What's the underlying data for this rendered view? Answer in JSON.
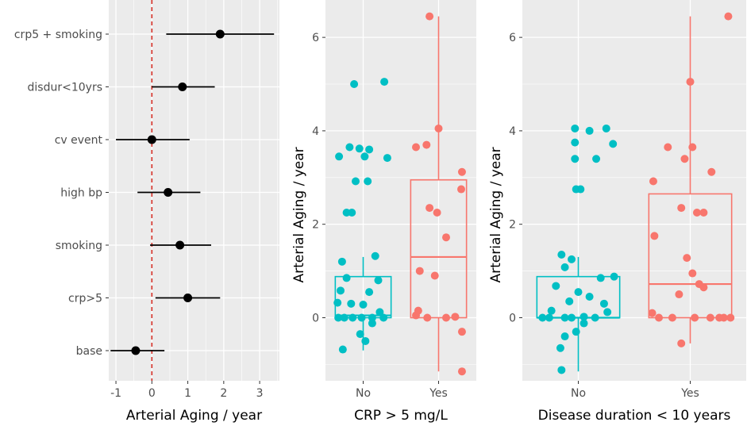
{
  "colors": {
    "panel_bg": "#EBEBEB",
    "grid": "#FFFFFF",
    "no": "#00BFC4",
    "yes": "#F8766D",
    "refline": "#D73027",
    "text": "#4D4D4D",
    "title": "#000000"
  },
  "chart_data": [
    {
      "type": "forest",
      "xlabel": "Arterial Aging / year",
      "xlim": [
        -1.2,
        3.55
      ],
      "xticks": [
        -1,
        0,
        1,
        2,
        3
      ],
      "xtick_labels": [
        "-1",
        "0",
        "1",
        "2",
        "3"
      ],
      "reference_line": 0,
      "rows": [
        {
          "label": "crp5 + smoking",
          "estimate": 1.9,
          "lower": 0.4,
          "upper": 3.4
        },
        {
          "label": "disdur<10yrs",
          "estimate": 0.85,
          "lower": 0.0,
          "upper": 1.75
        },
        {
          "label": "cv event",
          "estimate": 0.0,
          "lower": -1.0,
          "upper": 1.05
        },
        {
          "label": "high bp",
          "estimate": 0.45,
          "lower": -0.4,
          "upper": 1.35
        },
        {
          "label": "smoking",
          "estimate": 0.78,
          "lower": -0.05,
          "upper": 1.65
        },
        {
          "label": "crp>5",
          "estimate": 1.0,
          "lower": 0.1,
          "upper": 1.9
        },
        {
          "label": "base",
          "estimate": -0.45,
          "lower": -1.15,
          "upper": 0.35
        }
      ]
    },
    {
      "type": "box",
      "xlabel": "CRP > 5 mg/L",
      "ylabel": "Arterial Aging / year",
      "ylim": [
        -1.35,
        6.8
      ],
      "yticks": [
        0,
        2,
        4,
        6
      ],
      "ytick_labels": [
        "0",
        "2",
        "4",
        "6"
      ],
      "categories": [
        "No",
        "Yes"
      ],
      "boxes": [
        {
          "name": "No",
          "min": -0.7,
          "q1": 0.0,
          "median": 0.05,
          "q3": 0.88,
          "max": 1.3
        },
        {
          "name": "Yes",
          "min": -1.15,
          "q1": 0.0,
          "median": 1.3,
          "q3": 2.95,
          "max": 6.45
        }
      ],
      "points": [
        {
          "group": "No",
          "jitter": -0.12,
          "y": 5.0
        },
        {
          "group": "No",
          "jitter": 0.28,
          "y": 5.05
        },
        {
          "group": "No",
          "jitter": -0.18,
          "y": 3.65
        },
        {
          "group": "No",
          "jitter": -0.05,
          "y": 3.62
        },
        {
          "group": "No",
          "jitter": -0.32,
          "y": 3.45
        },
        {
          "group": "No",
          "jitter": 0.08,
          "y": 3.6
        },
        {
          "group": "No",
          "jitter": 0.32,
          "y": 3.42
        },
        {
          "group": "No",
          "jitter": 0.02,
          "y": 3.45
        },
        {
          "group": "No",
          "jitter": -0.1,
          "y": 2.92
        },
        {
          "group": "No",
          "jitter": 0.06,
          "y": 2.92
        },
        {
          "group": "No",
          "jitter": -0.22,
          "y": 2.25
        },
        {
          "group": "No",
          "jitter": -0.15,
          "y": 2.25
        },
        {
          "group": "No",
          "jitter": 0.16,
          "y": 1.32
        },
        {
          "group": "No",
          "jitter": -0.28,
          "y": 1.2
        },
        {
          "group": "No",
          "jitter": -0.22,
          "y": 0.85
        },
        {
          "group": "No",
          "jitter": 0.2,
          "y": 0.8
        },
        {
          "group": "No",
          "jitter": -0.3,
          "y": 0.58
        },
        {
          "group": "No",
          "jitter": 0.08,
          "y": 0.55
        },
        {
          "group": "No",
          "jitter": -0.34,
          "y": 0.32
        },
        {
          "group": "No",
          "jitter": -0.16,
          "y": 0.3
        },
        {
          "group": "No",
          "jitter": 0.0,
          "y": 0.28
        },
        {
          "group": "No",
          "jitter": 0.22,
          "y": 0.12
        },
        {
          "group": "No",
          "jitter": -0.33,
          "y": 0.0
        },
        {
          "group": "No",
          "jitter": -0.25,
          "y": 0.0
        },
        {
          "group": "No",
          "jitter": -0.14,
          "y": 0.0
        },
        {
          "group": "No",
          "jitter": -0.02,
          "y": 0.0
        },
        {
          "group": "No",
          "jitter": 0.12,
          "y": 0.0
        },
        {
          "group": "No",
          "jitter": 0.27,
          "y": 0.0
        },
        {
          "group": "No",
          "jitter": 0.12,
          "y": -0.12
        },
        {
          "group": "No",
          "jitter": -0.04,
          "y": -0.35
        },
        {
          "group": "No",
          "jitter": 0.03,
          "y": -0.5
        },
        {
          "group": "No",
          "jitter": -0.27,
          "y": -0.68
        },
        {
          "group": "Yes",
          "jitter": -0.12,
          "y": 6.45
        },
        {
          "group": "Yes",
          "jitter": 0.0,
          "y": 4.05
        },
        {
          "group": "Yes",
          "jitter": -0.16,
          "y": 3.7
        },
        {
          "group": "Yes",
          "jitter": -0.3,
          "y": 3.65
        },
        {
          "group": "Yes",
          "jitter": 0.31,
          "y": 3.12
        },
        {
          "group": "Yes",
          "jitter": 0.3,
          "y": 2.75
        },
        {
          "group": "Yes",
          "jitter": -0.12,
          "y": 2.35
        },
        {
          "group": "Yes",
          "jitter": -0.02,
          "y": 2.25
        },
        {
          "group": "Yes",
          "jitter": 0.1,
          "y": 1.72
        },
        {
          "group": "Yes",
          "jitter": -0.25,
          "y": 1.0
        },
        {
          "group": "Yes",
          "jitter": -0.05,
          "y": 0.9
        },
        {
          "group": "Yes",
          "jitter": -0.27,
          "y": 0.15
        },
        {
          "group": "Yes",
          "jitter": -0.3,
          "y": 0.05
        },
        {
          "group": "Yes",
          "jitter": -0.15,
          "y": 0.0
        },
        {
          "group": "Yes",
          "jitter": 0.1,
          "y": 0.0
        },
        {
          "group": "Yes",
          "jitter": 0.22,
          "y": 0.02
        },
        {
          "group": "Yes",
          "jitter": 0.31,
          "y": -0.3
        },
        {
          "group": "Yes",
          "jitter": 0.31,
          "y": -1.15
        }
      ]
    },
    {
      "type": "box",
      "xlabel": "Disease duration < 10 years",
      "ylabel": "Arterial Aging / year",
      "ylim": [
        -1.35,
        6.8
      ],
      "yticks": [
        0,
        2,
        4,
        6
      ],
      "ytick_labels": [
        "0",
        "2",
        "4",
        "6"
      ],
      "categories": [
        "No",
        "Yes"
      ],
      "boxes": [
        {
          "name": "No",
          "min": -1.15,
          "q1": 0.0,
          "median": 0.0,
          "q3": 0.88,
          "max": 1.3
        },
        {
          "name": "Yes",
          "min": -0.55,
          "q1": 0.0,
          "median": 0.72,
          "q3": 2.65,
          "max": 6.45
        }
      ],
      "points": [
        {
          "group": "No",
          "jitter": -0.03,
          "y": 4.05
        },
        {
          "group": "No",
          "jitter": 0.1,
          "y": 4.0
        },
        {
          "group": "No",
          "jitter": 0.25,
          "y": 4.05
        },
        {
          "group": "No",
          "jitter": -0.03,
          "y": 3.75
        },
        {
          "group": "No",
          "jitter": 0.31,
          "y": 3.72
        },
        {
          "group": "No",
          "jitter": 0.16,
          "y": 3.4
        },
        {
          "group": "No",
          "jitter": -0.03,
          "y": 3.4
        },
        {
          "group": "No",
          "jitter": -0.02,
          "y": 2.75
        },
        {
          "group": "No",
          "jitter": 0.02,
          "y": 2.75
        },
        {
          "group": "No",
          "jitter": -0.15,
          "y": 1.35
        },
        {
          "group": "No",
          "jitter": -0.06,
          "y": 1.25
        },
        {
          "group": "No",
          "jitter": -0.12,
          "y": 1.08
        },
        {
          "group": "No",
          "jitter": 0.32,
          "y": 0.88
        },
        {
          "group": "No",
          "jitter": 0.2,
          "y": 0.85
        },
        {
          "group": "No",
          "jitter": -0.2,
          "y": 0.68
        },
        {
          "group": "No",
          "jitter": 0.0,
          "y": 0.55
        },
        {
          "group": "No",
          "jitter": 0.1,
          "y": 0.45
        },
        {
          "group": "No",
          "jitter": -0.08,
          "y": 0.35
        },
        {
          "group": "No",
          "jitter": 0.23,
          "y": 0.3
        },
        {
          "group": "No",
          "jitter": -0.24,
          "y": 0.15
        },
        {
          "group": "No",
          "jitter": 0.26,
          "y": 0.12
        },
        {
          "group": "No",
          "jitter": -0.32,
          "y": 0.0
        },
        {
          "group": "No",
          "jitter": -0.26,
          "y": 0.0
        },
        {
          "group": "No",
          "jitter": -0.12,
          "y": 0.0
        },
        {
          "group": "No",
          "jitter": -0.06,
          "y": 0.0
        },
        {
          "group": "No",
          "jitter": 0.05,
          "y": 0.02
        },
        {
          "group": "No",
          "jitter": 0.15,
          "y": 0.0
        },
        {
          "group": "No",
          "jitter": 0.05,
          "y": -0.12
        },
        {
          "group": "No",
          "jitter": -0.02,
          "y": -0.3
        },
        {
          "group": "No",
          "jitter": -0.12,
          "y": -0.4
        },
        {
          "group": "No",
          "jitter": -0.16,
          "y": -0.65
        },
        {
          "group": "No",
          "jitter": -0.15,
          "y": -1.12
        },
        {
          "group": "Yes",
          "jitter": 0.34,
          "y": 6.45
        },
        {
          "group": "Yes",
          "jitter": 0.0,
          "y": 5.05
        },
        {
          "group": "Yes",
          "jitter": 0.02,
          "y": 3.65
        },
        {
          "group": "Yes",
          "jitter": -0.2,
          "y": 3.65
        },
        {
          "group": "Yes",
          "jitter": -0.05,
          "y": 3.4
        },
        {
          "group": "Yes",
          "jitter": 0.19,
          "y": 3.12
        },
        {
          "group": "Yes",
          "jitter": -0.33,
          "y": 2.92
        },
        {
          "group": "Yes",
          "jitter": -0.08,
          "y": 2.35
        },
        {
          "group": "Yes",
          "jitter": 0.06,
          "y": 2.25
        },
        {
          "group": "Yes",
          "jitter": 0.12,
          "y": 2.25
        },
        {
          "group": "Yes",
          "jitter": -0.32,
          "y": 1.75
        },
        {
          "group": "Yes",
          "jitter": -0.03,
          "y": 1.28
        },
        {
          "group": "Yes",
          "jitter": 0.02,
          "y": 0.95
        },
        {
          "group": "Yes",
          "jitter": 0.08,
          "y": 0.72
        },
        {
          "group": "Yes",
          "jitter": 0.12,
          "y": 0.65
        },
        {
          "group": "Yes",
          "jitter": -0.1,
          "y": 0.5
        },
        {
          "group": "Yes",
          "jitter": -0.34,
          "y": 0.1
        },
        {
          "group": "Yes",
          "jitter": -0.28,
          "y": 0.0
        },
        {
          "group": "Yes",
          "jitter": -0.16,
          "y": 0.0
        },
        {
          "group": "Yes",
          "jitter": 0.04,
          "y": 0.0
        },
        {
          "group": "Yes",
          "jitter": 0.18,
          "y": 0.0
        },
        {
          "group": "Yes",
          "jitter": 0.26,
          "y": 0.0
        },
        {
          "group": "Yes",
          "jitter": 0.3,
          "y": 0.0
        },
        {
          "group": "Yes",
          "jitter": 0.36,
          "y": 0.0
        },
        {
          "group": "Yes",
          "jitter": -0.08,
          "y": -0.55
        }
      ]
    }
  ]
}
